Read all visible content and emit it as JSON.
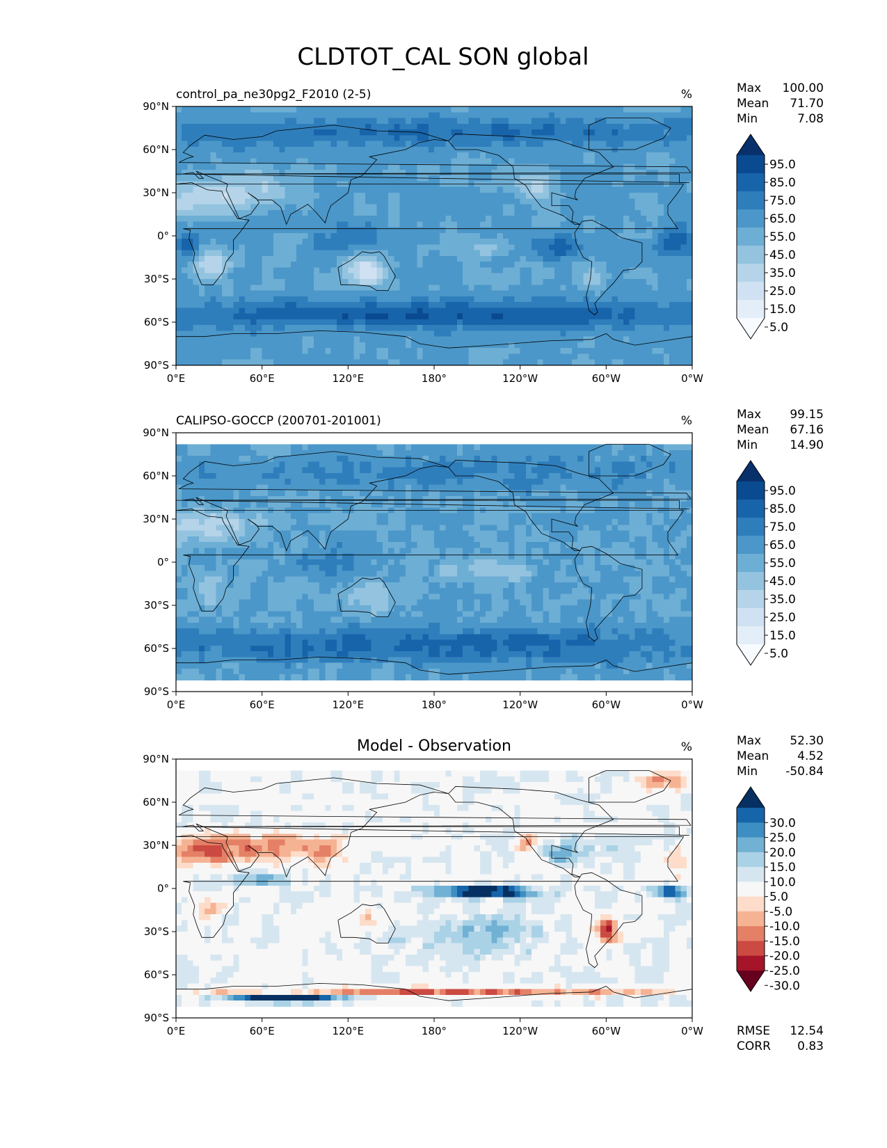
{
  "figure": {
    "title": "CLDTOT_CAL SON global"
  },
  "colors": {
    "blues": [
      "#f7fbff",
      "#e3eef9",
      "#cfe1f2",
      "#b5d4e9",
      "#93c3df",
      "#6daed5",
      "#4b97c9",
      "#2f7ebc",
      "#1864aa",
      "#0a4a90",
      "#08306b"
    ],
    "diverging": [
      "#67001f",
      "#a51429",
      "#cb4a42",
      "#e48066",
      "#f5b394",
      "#fddcc9",
      "#f7f7f7",
      "#d6e6f0",
      "#aad2e6",
      "#71b1d4",
      "#3d8ec2",
      "#1664a9",
      "#053061"
    ],
    "land_outline": "#000000"
  },
  "chart_data": [
    {
      "type": "heatmap",
      "title": "",
      "left_title": "control_pa_ne30pg2_F2010 (2-5)",
      "units": "%",
      "colormap": "blues",
      "stats": [
        {
          "label": "Max",
          "value": "100.00"
        },
        {
          "label": "Mean",
          "value": "71.70"
        },
        {
          "label": "Min",
          "value": "7.08"
        }
      ],
      "colorbar_ticks": [
        "95.0",
        "85.0",
        "75.0",
        "65.0",
        "55.0",
        "45.0",
        "35.0",
        "25.0",
        "15.0",
        "5.0"
      ],
      "x_ticks": [
        "0°E",
        "60°E",
        "120°E",
        "180°",
        "120°W",
        "60°W",
        "0°W"
      ],
      "y_ticks": [
        "90°N",
        "60°N",
        "30°N",
        "0°",
        "30°S",
        "60°S",
        "90°S"
      ],
      "lat_coverage": [
        -90,
        90
      ],
      "field": "model"
    },
    {
      "type": "heatmap",
      "title": "",
      "left_title": "CALIPSO-GOCCP (200701-201001)",
      "units": "%",
      "colormap": "blues",
      "stats": [
        {
          "label": "Max",
          "value": "99.15"
        },
        {
          "label": "Mean",
          "value": "67.16"
        },
        {
          "label": "Min",
          "value": "14.90"
        }
      ],
      "colorbar_ticks": [
        "95.0",
        "85.0",
        "75.0",
        "65.0",
        "55.0",
        "45.0",
        "35.0",
        "25.0",
        "15.0",
        "5.0"
      ],
      "x_ticks": [
        "0°E",
        "60°E",
        "120°E",
        "180°",
        "120°W",
        "60°W",
        "0°W"
      ],
      "y_ticks": [
        "90°N",
        "60°N",
        "30°N",
        "0°",
        "30°S",
        "60°S",
        "90°S"
      ],
      "lat_coverage": [
        -82,
        82
      ],
      "field": "obs"
    },
    {
      "type": "heatmap",
      "title": "Model - Observation",
      "left_title": "",
      "units": "%",
      "colormap": "diverging",
      "stats": [
        {
          "label": "Max",
          "value": "52.30"
        },
        {
          "label": "Mean",
          "value": "4.52"
        },
        {
          "label": "Min",
          "value": "-50.84"
        }
      ],
      "colorbar_ticks": [
        "30.0",
        "25.0",
        "20.0",
        "15.0",
        "10.0",
        "5.0",
        "-5.0",
        "-10.0",
        "-15.0",
        "-20.0",
        "-25.0",
        "-30.0"
      ],
      "x_ticks": [
        "0°E",
        "60°E",
        "120°E",
        "180°",
        "120°W",
        "60°W",
        "0°W"
      ],
      "y_ticks": [
        "90°N",
        "60°N",
        "30°N",
        "0°",
        "30°S",
        "60°S",
        "90°S"
      ],
      "lat_coverage": [
        -82,
        82
      ],
      "field": "diff",
      "metrics": [
        {
          "label": "RMSE",
          "value": "12.54"
        },
        {
          "label": "CORR",
          "value": "0.83"
        }
      ]
    }
  ]
}
